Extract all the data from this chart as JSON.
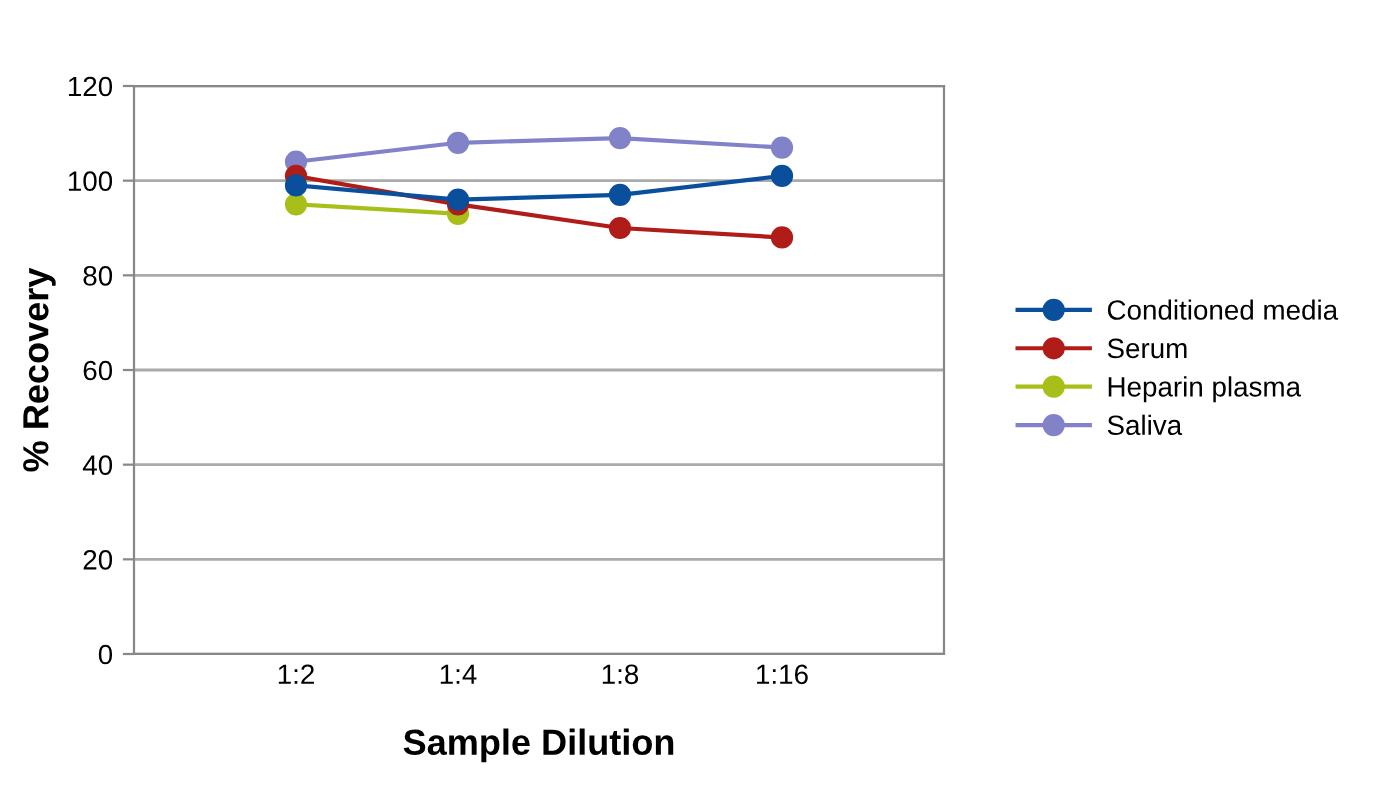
{
  "chart_data": {
    "type": "line",
    "xlabel": "Sample Dilution",
    "ylabel": "% Recovery",
    "categories": [
      "1:2",
      "1:4",
      "1:8",
      "1:16"
    ],
    "series": [
      {
        "name": "Conditioned media",
        "color": "#0a4f9c",
        "values": [
          99,
          96,
          97,
          101
        ]
      },
      {
        "name": "Serum",
        "color": "#b01c17",
        "values": [
          101,
          95,
          90,
          88
        ]
      },
      {
        "name": "Heparin plasma",
        "color": "#a8bf1a",
        "values": [
          95,
          93,
          null,
          null
        ]
      },
      {
        "name": "Saliva",
        "color": "#8282c8",
        "values": [
          104,
          108,
          109,
          107
        ]
      }
    ],
    "ylim": [
      0,
      120
    ],
    "yticks": [
      0,
      20,
      40,
      60,
      80,
      100,
      120
    ],
    "grid": "y",
    "legend": "right",
    "marker": "circle",
    "line_style": "solid"
  }
}
